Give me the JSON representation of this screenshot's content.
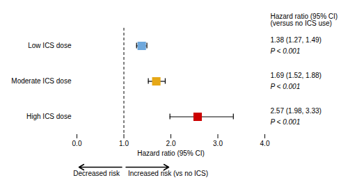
{
  "chart_data": {
    "type": "forest",
    "categories": [
      "Low ICS dose",
      "Moderate ICS dose",
      "High ICS dose"
    ],
    "values": [
      1.38,
      1.69,
      2.57
    ],
    "ci_low": [
      1.27,
      1.52,
      1.98
    ],
    "ci_high": [
      1.49,
      1.88,
      3.33
    ],
    "value_labels": [
      "1.38 (1.27, 1.49)",
      "1.69 (1.52, 1.88)",
      "2.57 (1.98, 3.33)"
    ],
    "data_labels": true,
    "p_labels": [
      "P < 0.001",
      "P < 0.001",
      "P < 0.001"
    ],
    "colors": [
      "#6fa8dc",
      "#e6a817",
      "#cc0000"
    ],
    "marker": "square",
    "xlim": [
      0,
      4
    ],
    "xticks": [
      0,
      1,
      2,
      3,
      4
    ],
    "xlabel": "Hazard ratio (95% CI)",
    "ref_line": 1.0,
    "header": [
      "Hazard ratio (95% CI)",
      "(versus no ICS use)"
    ],
    "arrow_labels": [
      "Decreased risk",
      "Increased risk (vs no ICS)"
    ],
    "tick_labels": "x",
    "grid": false
  }
}
